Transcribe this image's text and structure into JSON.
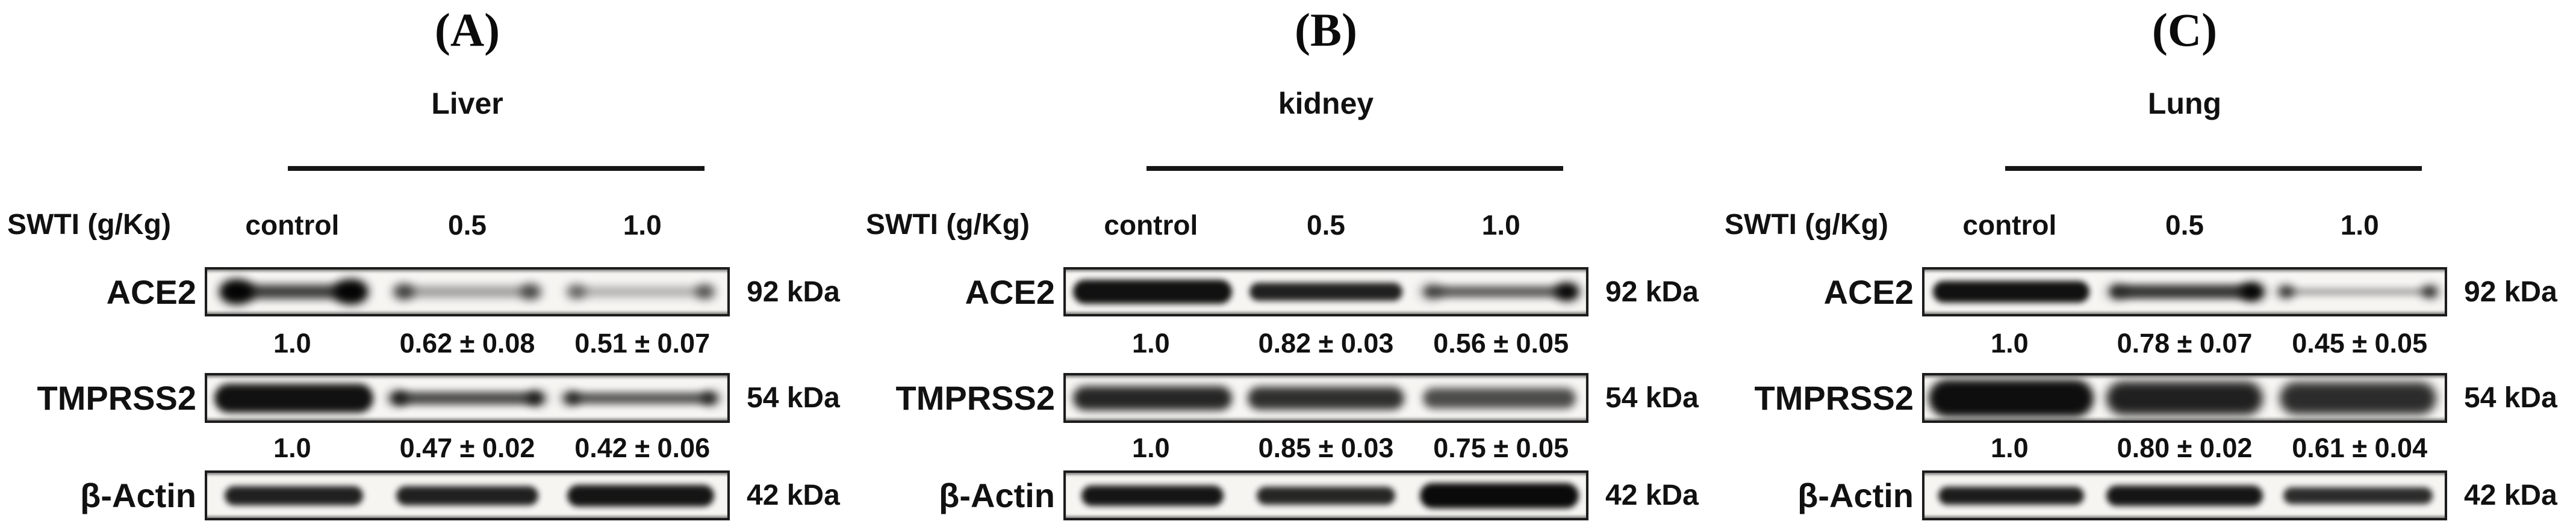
{
  "figure": {
    "dose_label": "SWTI (g/Kg)",
    "lane_headers": [
      "control",
      "0.5",
      "1.0"
    ]
  },
  "colors": {
    "background": "#ffffff",
    "text": "#111111",
    "band": "#0a0a0a",
    "blot_background": "#f6f5f2",
    "frame": "#1c1c1c"
  },
  "panels": [
    {
      "label": "(A)",
      "tissue": "Liver",
      "blots": [
        {
          "protein": "ACE2",
          "kda": "92 kDa",
          "values": [
            "1.0",
            "0.62 ± 0.08",
            "0.51 ± 0.07"
          ],
          "bands": [
            {
              "w": 0.8,
              "h": 24,
              "o": 0.78,
              "b": 7,
              "el": 0.95,
              "er": 0.95,
              "eh": 42
            },
            {
              "w": 0.8,
              "h": 16,
              "o": 0.45,
              "b": 8,
              "el": 0.65,
              "er": 0.6,
              "eh": 26
            },
            {
              "w": 0.8,
              "h": 14,
              "o": 0.38,
              "b": 8,
              "el": 0.5,
              "er": 0.6,
              "eh": 24
            }
          ]
        },
        {
          "protein": "TMPRSS2",
          "kda": "54 kDa",
          "values": [
            "1.0",
            "0.47 ± 0.02",
            "0.42 ± 0.06"
          ],
          "bands": [
            {
              "w": 0.92,
              "h": 48,
              "o": 0.97,
              "b": 6
            },
            {
              "w": 0.85,
              "h": 22,
              "o": 0.7,
              "b": 6,
              "el": 0.75,
              "er": 0.75,
              "eh": 24
            },
            {
              "w": 0.85,
              "h": 20,
              "o": 0.65,
              "b": 6,
              "el": 0.7,
              "er": 0.7,
              "eh": 22
            }
          ]
        },
        {
          "protein": "β-Actin",
          "kda": "42 kDa",
          "bands": [
            {
              "w": 0.8,
              "h": 32,
              "o": 0.9,
              "b": 5
            },
            {
              "w": 0.82,
              "h": 32,
              "o": 0.9,
              "b": 5
            },
            {
              "w": 0.85,
              "h": 36,
              "o": 0.95,
              "b": 5
            }
          ]
        }
      ]
    },
    {
      "label": "(B)",
      "tissue": "kidney",
      "blots": [
        {
          "protein": "ACE2",
          "kda": "92 kDa",
          "values": [
            "1.0",
            "0.82 ± 0.03",
            "0.56 ± 0.05"
          ],
          "bands": [
            {
              "w": 0.92,
              "h": 40,
              "o": 0.97,
              "b": 5
            },
            {
              "w": 0.88,
              "h": 30,
              "o": 0.9,
              "b": 5
            },
            {
              "w": 0.86,
              "h": 20,
              "o": 0.62,
              "b": 6,
              "el": 0.3,
              "er": 0.95,
              "eh": 30
            }
          ]
        },
        {
          "protein": "TMPRSS2",
          "kda": "54 kDa",
          "values": [
            "1.0",
            "0.85 ± 0.03",
            "0.75 ± 0.05"
          ],
          "bands": [
            {
              "w": 0.92,
              "h": 40,
              "o": 0.88,
              "b": 7
            },
            {
              "w": 0.9,
              "h": 38,
              "o": 0.84,
              "b": 7
            },
            {
              "w": 0.88,
              "h": 34,
              "o": 0.72,
              "b": 7
            }
          ]
        },
        {
          "protein": "β-Actin",
          "kda": "42 kDa",
          "bands": [
            {
              "w": 0.82,
              "h": 34,
              "o": 0.95,
              "b": 5
            },
            {
              "w": 0.8,
              "h": 30,
              "o": 0.88,
              "b": 5
            },
            {
              "w": 0.92,
              "h": 42,
              "o": 1.0,
              "b": 5
            }
          ]
        }
      ]
    },
    {
      "label": "(C)",
      "tissue": "Lung",
      "blots": [
        {
          "protein": "ACE2",
          "kda": "92 kDa",
          "values": [
            "1.0",
            "0.78 ± 0.07",
            "0.45 ± 0.05"
          ],
          "bands": [
            {
              "w": 0.9,
              "h": 36,
              "o": 0.97,
              "b": 5
            },
            {
              "w": 0.86,
              "h": 24,
              "o": 0.8,
              "b": 6,
              "el": 0.25,
              "er": 0.95,
              "eh": 30
            },
            {
              "w": 0.86,
              "h": 10,
              "o": 0.4,
              "b": 6,
              "el": 0.85,
              "er": 0.85,
              "eh": 20
            }
          ]
        },
        {
          "protein": "TMPRSS2",
          "kda": "54 kDa",
          "values": [
            "1.0",
            "0.80 ± 0.02",
            "0.61 ± 0.04"
          ],
          "bands": [
            {
              "w": 0.95,
              "h": 62,
              "o": 0.98,
              "b": 7
            },
            {
              "w": 0.9,
              "h": 56,
              "o": 0.9,
              "b": 8
            },
            {
              "w": 0.9,
              "h": 54,
              "o": 0.85,
              "b": 8
            }
          ]
        },
        {
          "protein": "β-Actin",
          "kda": "42 kDa",
          "bands": [
            {
              "w": 0.84,
              "h": 30,
              "o": 0.92,
              "b": 5
            },
            {
              "w": 0.9,
              "h": 34,
              "o": 0.95,
              "b": 5
            },
            {
              "w": 0.86,
              "h": 28,
              "o": 0.85,
              "b": 5
            }
          ]
        }
      ]
    }
  ]
}
